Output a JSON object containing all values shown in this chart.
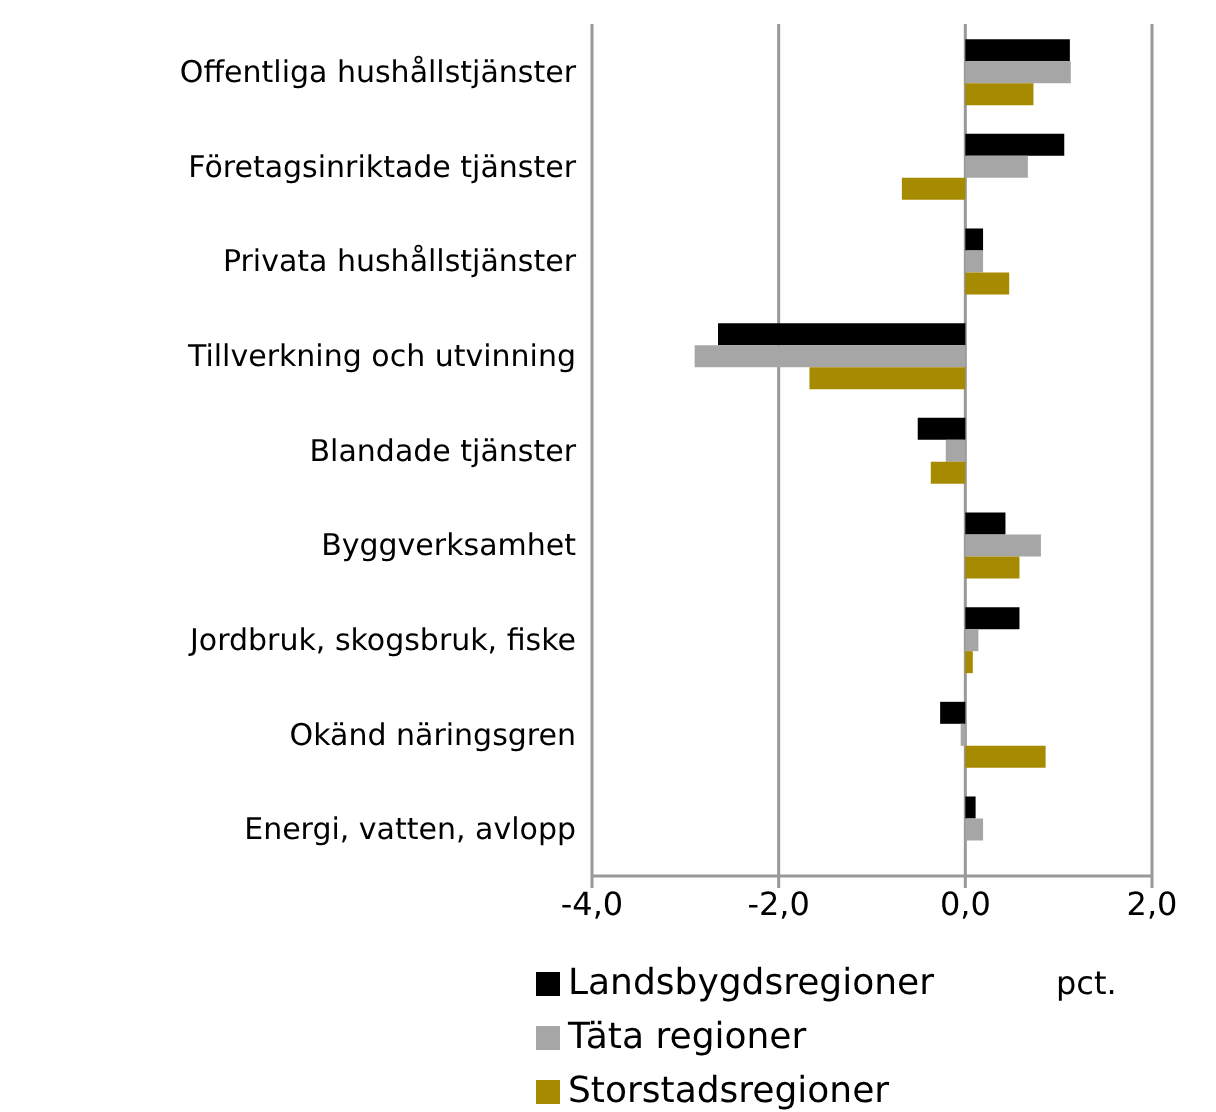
{
  "chart_data": {
    "type": "bar",
    "orientation": "horizontal",
    "xlabel": "pct.",
    "categories": [
      "Offentliga hushållstjänster",
      "Företagsinriktade tjänster",
      "Privata hushållstjänster",
      "Tillverkning och utvinning",
      "Blandade tjänster",
      "Byggverksamhet",
      "Jordbruk, skogsbruk, fiske",
      "Okänd näringsgren",
      "Energi, vatten, avlopp"
    ],
    "series": [
      {
        "name": "Landsbygdsregioner",
        "color": "#000000",
        "values": [
          1.12,
          1.06,
          0.19,
          -2.65,
          -0.51,
          0.43,
          0.58,
          -0.27,
          0.11
        ]
      },
      {
        "name": "Täta regioner",
        "color": "#a6a6a6",
        "values": [
          1.13,
          0.67,
          0.19,
          -2.9,
          -0.21,
          0.81,
          0.14,
          -0.05,
          0.19
        ]
      },
      {
        "name": "Storstadsregioner",
        "color": "#a68a00",
        "values": [
          0.73,
          -0.68,
          0.47,
          -1.67,
          -0.37,
          0.58,
          0.08,
          0.86,
          0
        ]
      }
    ],
    "xlim": [
      -4,
      2
    ],
    "xticks": [
      {
        "value": -4,
        "label": "-4,0"
      },
      {
        "value": -2,
        "label": "-2,0"
      },
      {
        "value": 0,
        "label": "0,0"
      },
      {
        "value": 2,
        "label": "2,0"
      }
    ],
    "grid": "x",
    "legend": "bottom"
  }
}
